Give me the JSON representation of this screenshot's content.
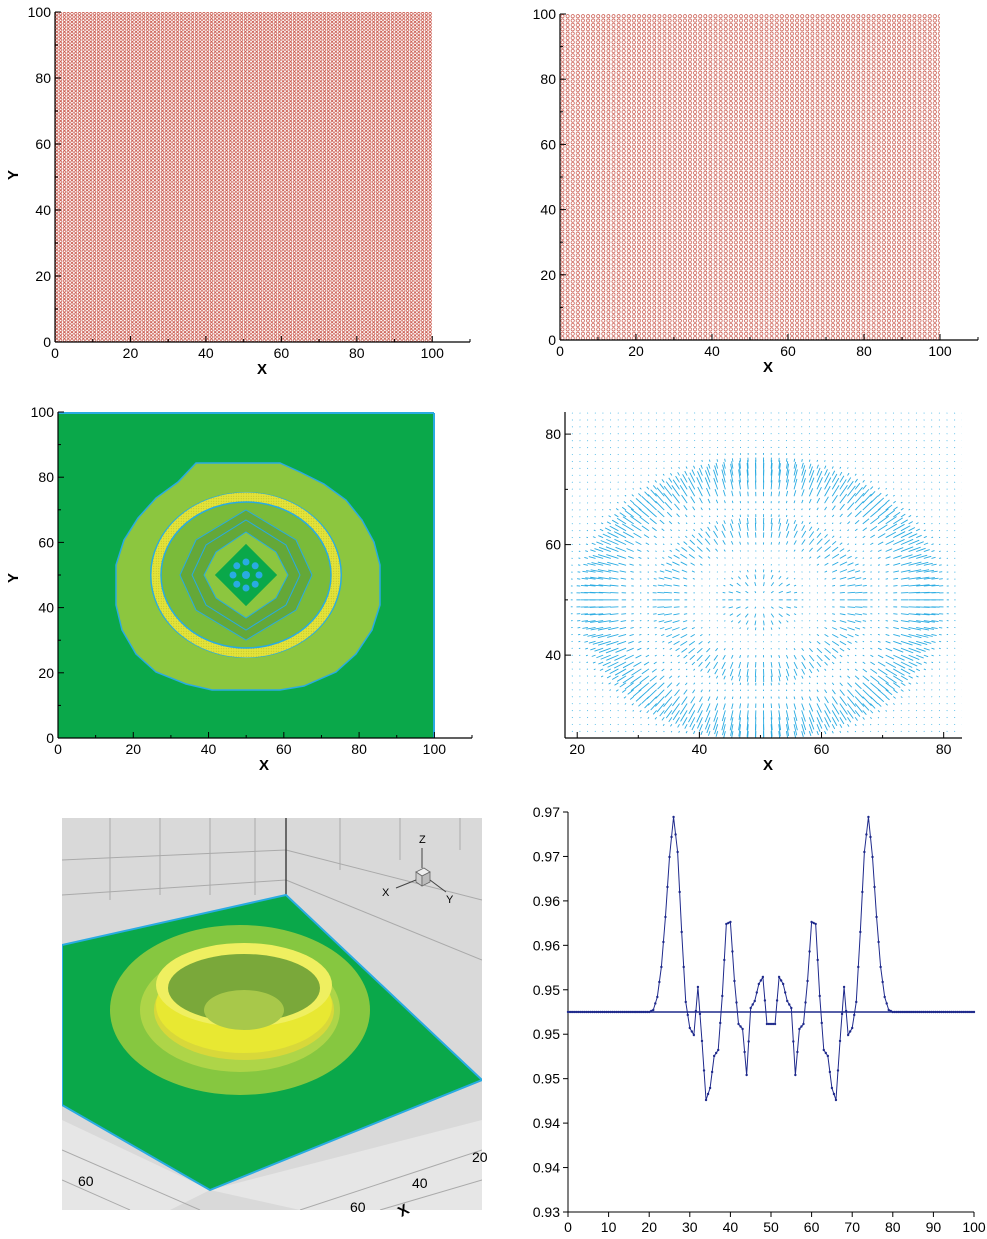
{
  "chart_data": [
    {
      "type": "scatter",
      "panel": "grid-points-dense",
      "xlabel": "X",
      "ylabel": "Y",
      "xlim": [
        0,
        110
      ],
      "ylim": [
        0,
        100
      ],
      "x_ticks": [
        0,
        20,
        40,
        60,
        80,
        100
      ],
      "y_ticks": [
        0,
        20,
        40,
        60,
        80,
        100
      ],
      "point_spacing": 1,
      "point_range": [
        0,
        100
      ],
      "color": "#c0392b"
    },
    {
      "type": "scatter",
      "panel": "grid-points-regular",
      "xlabel": "X",
      "ylabel": "",
      "xlim": [
        0,
        110
      ],
      "ylim": [
        0,
        100
      ],
      "x_ticks": [
        0,
        20,
        40,
        60,
        80,
        100
      ],
      "y_ticks": [
        0,
        20,
        40,
        60,
        80,
        100
      ],
      "point_spacing": 1,
      "point_range": [
        0,
        100
      ],
      "color": "#c0392b"
    },
    {
      "type": "heatmap",
      "panel": "contour",
      "xlabel": "X",
      "ylabel": "Y",
      "xlim": [
        0,
        110
      ],
      "ylim": [
        0,
        100
      ],
      "x_ticks": [
        0,
        20,
        40,
        60,
        80,
        100
      ],
      "y_ticks": [
        0,
        20,
        40,
        60,
        80,
        100
      ],
      "center": [
        50,
        50
      ],
      "outer_radius": 35,
      "ring_radius": 25,
      "colors": {
        "background": "#0aa84a",
        "outer": "#8cc63f",
        "ring": "#e8e832",
        "contour": "#29abe2"
      }
    },
    {
      "type": "scatter",
      "panel": "vector-field",
      "xlabel": "X",
      "ylabel": "",
      "xlim": [
        18,
        83
      ],
      "ylim": [
        25,
        84
      ],
      "x_ticks": [
        20,
        40,
        60,
        80
      ],
      "y_ticks": [
        40,
        60,
        80
      ],
      "center": [
        50,
        50
      ],
      "color": "#29abe2"
    },
    {
      "type": "area",
      "panel": "surface-3d",
      "axis_ticks": {
        "left": [
          "60"
        ],
        "bottom": [
          "60",
          "40",
          "20"
        ]
      },
      "axis_label": "X",
      "triad_labels": [
        "Z",
        "X",
        "Y"
      ],
      "colors": {
        "surface": "#0aa84a",
        "ring": "#e8e832",
        "edge": "#29abe2",
        "wall": "#d6d6d6"
      }
    },
    {
      "type": "line",
      "panel": "profile",
      "xlim": [
        0,
        100
      ],
      "ylim": [
        0.93,
        0.97
      ],
      "x_ticks": [
        0,
        10,
        20,
        30,
        40,
        50,
        60,
        70,
        80,
        90,
        100
      ],
      "y_tick_labels": [
        "0.93",
        "0.94",
        "0.94",
        "0.95",
        "0.95",
        "0.95",
        "0.96",
        "0.96",
        "0.97",
        "0.97"
      ],
      "baseline": 0.95,
      "color": "#1f2a8c",
      "keypoints": [
        [
          0,
          0.95
        ],
        [
          20,
          0.95
        ],
        [
          21,
          0.9502
        ],
        [
          22,
          0.9515
        ],
        [
          23,
          0.9545
        ],
        [
          24,
          0.9595
        ],
        [
          25,
          0.9655
        ],
        [
          26,
          0.9695
        ],
        [
          27,
          0.966
        ],
        [
          28,
          0.958
        ],
        [
          29,
          0.951
        ],
        [
          30,
          0.9484
        ],
        [
          31,
          0.9477
        ],
        [
          32,
          0.9525
        ],
        [
          33,
          0.9471
        ],
        [
          34,
          0.9412
        ],
        [
          35,
          0.9424
        ],
        [
          36,
          0.9456
        ],
        [
          37,
          0.9462
        ],
        [
          38,
          0.9516
        ],
        [
          39,
          0.9588
        ],
        [
          40,
          0.959
        ],
        [
          41,
          0.9531
        ],
        [
          42,
          0.9488
        ],
        [
          43,
          0.9483
        ],
        [
          44,
          0.9437
        ],
        [
          45,
          0.9504
        ],
        [
          46,
          0.9511
        ],
        [
          47,
          0.9528
        ],
        [
          48,
          0.9535
        ],
        [
          49,
          0.9488
        ],
        [
          50,
          0.9488
        ],
        [
          51,
          0.9488
        ],
        [
          52,
          0.9535
        ],
        [
          53,
          0.9528
        ],
        [
          54,
          0.9511
        ],
        [
          55,
          0.9504
        ],
        [
          56,
          0.9437
        ],
        [
          57,
          0.9483
        ],
        [
          58,
          0.9488
        ],
        [
          59,
          0.9531
        ],
        [
          60,
          0.959
        ],
        [
          61,
          0.9588
        ],
        [
          62,
          0.9516
        ],
        [
          63,
          0.9462
        ],
        [
          64,
          0.9456
        ],
        [
          65,
          0.9424
        ],
        [
          66,
          0.9412
        ],
        [
          67,
          0.9471
        ],
        [
          68,
          0.9525
        ],
        [
          69,
          0.9477
        ],
        [
          70,
          0.9484
        ],
        [
          71,
          0.951
        ],
        [
          72,
          0.958
        ],
        [
          73,
          0.966
        ],
        [
          74,
          0.9695
        ],
        [
          75,
          0.9655
        ],
        [
          76,
          0.9595
        ],
        [
          77,
          0.9545
        ],
        [
          78,
          0.9515
        ],
        [
          79,
          0.9502
        ],
        [
          80,
          0.95
        ],
        [
          100,
          0.95
        ]
      ]
    }
  ]
}
